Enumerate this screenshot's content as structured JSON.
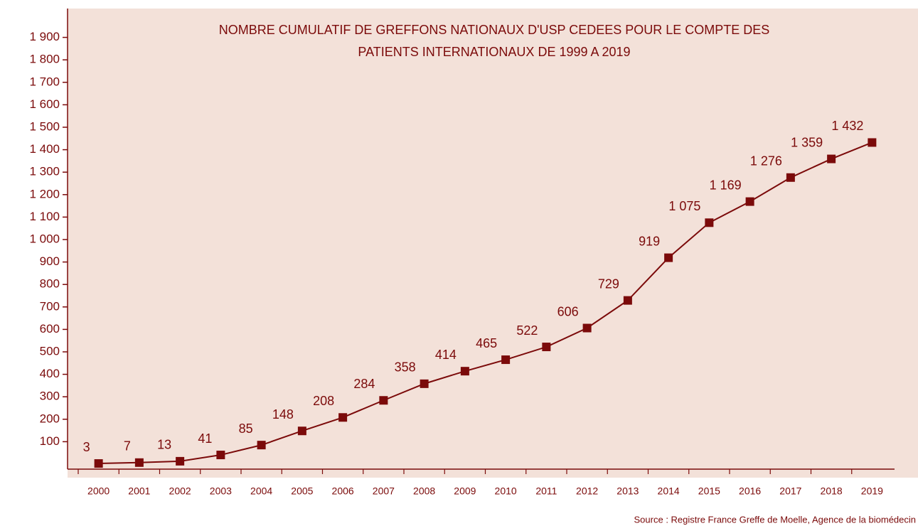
{
  "chart_data": {
    "type": "line",
    "title": [
      "NOMBRE CUMULATIF DE GREFFONS NATIONAUX D'USP CEDEES POUR LE COMPTE DES",
      "PATIENTS INTERNATIONAUX DE 1999 A 2019"
    ],
    "source": "Source : Registre France Greffe de Moelle, Agence de la biomédecin",
    "categories": [
      "2000",
      "2001",
      "2002",
      "2003",
      "2004",
      "2005",
      "2006",
      "2007",
      "2008",
      "2009",
      "2010",
      "2011",
      "2012",
      "2013",
      "2014",
      "2015",
      "2016",
      "2017",
      "2018",
      "2019"
    ],
    "values": [
      3,
      7,
      13,
      41,
      85,
      148,
      208,
      284,
      358,
      414,
      465,
      522,
      606,
      729,
      919,
      1075,
      1169,
      1276,
      1359,
      1432
    ],
    "value_labels": [
      "3",
      "7",
      "13",
      "41",
      "85",
      "148",
      "208",
      "284",
      "358",
      "414",
      "465",
      "522",
      "606",
      "729",
      "919",
      "1 075",
      "1 169",
      "1 276",
      "1 359",
      "1 432"
    ],
    "color": "#7b0a0a",
    "ylim": [
      0,
      2000
    ],
    "yticks": [
      100,
      200,
      300,
      400,
      500,
      600,
      700,
      800,
      900,
      {
        "value": 1000,
        "label": "1 000"
      },
      {
        "value": 1100,
        "label": "1 100"
      },
      {
        "value": 1200,
        "label": "1 200"
      },
      {
        "value": 1300,
        "label": "1 300"
      },
      {
        "value": 1400,
        "label": "1 400"
      },
      {
        "value": 1500,
        "label": "1 500"
      },
      {
        "value": 1600,
        "label": "1 600"
      },
      {
        "value": 1700,
        "label": "1 700"
      },
      {
        "value": 1800,
        "label": "1 800"
      },
      {
        "value": 1900,
        "label": "1 900"
      }
    ]
  }
}
